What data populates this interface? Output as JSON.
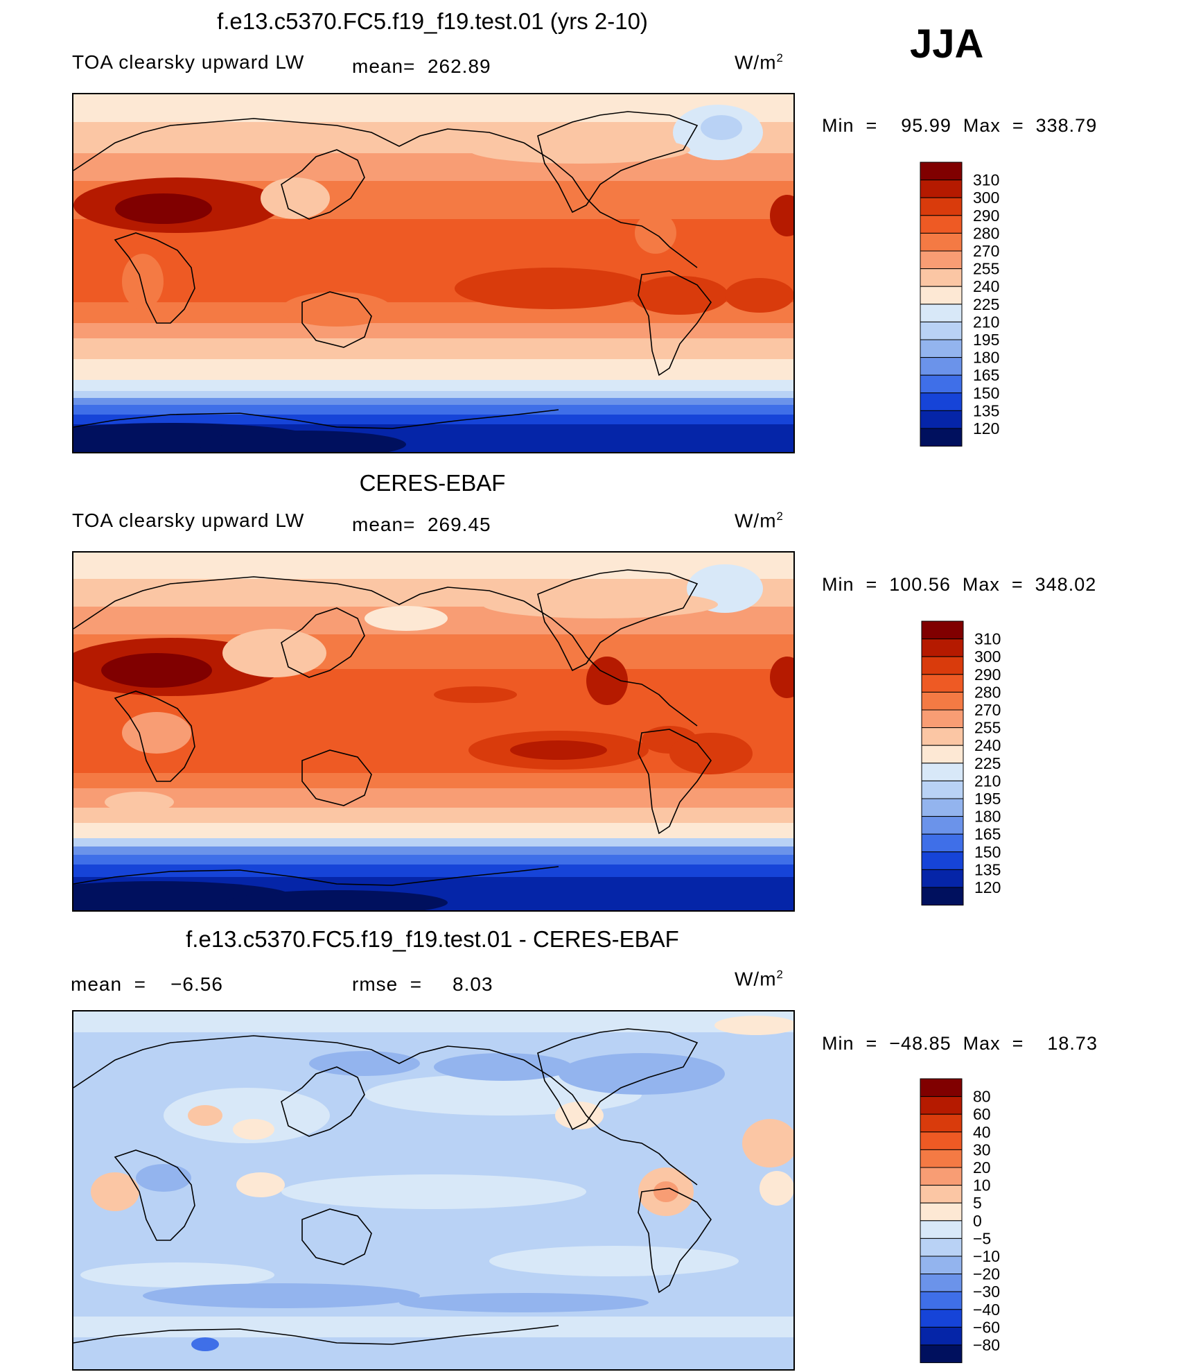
{
  "season": "JJA",
  "panels": [
    {
      "title": "f.e13.c5370.FC5.f19_f19.test.01 (yrs 2-10)",
      "left_label": "TOA clearsky upward LW",
      "mid_label": "mean=  262.89",
      "units_base": "W/m",
      "units_exp": "2",
      "minmax": "Min  =    95.99  Max  =  338.79"
    },
    {
      "title": "CERES-EBAF",
      "left_label": "TOA clearsky upward LW",
      "mid_label": "mean=  269.45",
      "units_base": "W/m",
      "units_exp": "2",
      "minmax": "Min  =  100.56  Max  =  348.02"
    },
    {
      "title": "f.e13.c5370.FC5.f19_f19.test.01 - CERES-EBAF",
      "left_label": "mean  =    −6.56",
      "mid_label": "rmse  =     8.03",
      "units_base": "W/m",
      "units_exp": "2",
      "minmax": "Min  =  −48.85  Max  =    18.73"
    }
  ],
  "chart_data": [
    {
      "type": "heatmap",
      "title": "f.e13.c5370.FC5.f19_f19.test.01 (yrs 2-10)",
      "variable": "TOA clearsky upward LW",
      "units": "W/m2",
      "mean": 262.89,
      "min": 95.99,
      "max": 338.79,
      "colorbar_levels": [
        310,
        300,
        290,
        280,
        270,
        255,
        240,
        225,
        210,
        195,
        180,
        165,
        150,
        135,
        120
      ],
      "colorbar_colors": [
        "#800000",
        "#b51a00",
        "#d93b0c",
        "#ee5a24",
        "#f47a44",
        "#f89d74",
        "#fbc6a4",
        "#fde8d4",
        "#d8e8f8",
        "#b9d2f5",
        "#93b4ee",
        "#6b93ea",
        "#3f6fe8",
        "#1644d8",
        "#0525a8",
        "#00105e"
      ]
    },
    {
      "type": "heatmap",
      "title": "CERES-EBAF",
      "variable": "TOA clearsky upward LW",
      "units": "W/m2",
      "mean": 269.45,
      "min": 100.56,
      "max": 348.02,
      "colorbar_levels": [
        310,
        300,
        290,
        280,
        270,
        255,
        240,
        225,
        210,
        195,
        180,
        165,
        150,
        135,
        120
      ],
      "colorbar_colors": [
        "#800000",
        "#b51a00",
        "#d93b0c",
        "#ee5a24",
        "#f47a44",
        "#f89d74",
        "#fbc6a4",
        "#fde8d4",
        "#d8e8f8",
        "#b9d2f5",
        "#93b4ee",
        "#6b93ea",
        "#3f6fe8",
        "#1644d8",
        "#0525a8",
        "#00105e"
      ]
    },
    {
      "type": "heatmap",
      "title": "f.e13.c5370.FC5.f19_f19.test.01 - CERES-EBAF",
      "units": "W/m2",
      "mean": -6.56,
      "rmse": 8.03,
      "min": -48.85,
      "max": 18.73,
      "colorbar_levels": [
        80,
        60,
        40,
        30,
        20,
        10,
        5,
        0,
        -5,
        -10,
        -20,
        -30,
        -40,
        -60,
        -80
      ],
      "colorbar_colors": [
        "#800000",
        "#b51a00",
        "#d93b0c",
        "#ee5a24",
        "#f47a44",
        "#f89d74",
        "#fbc6a4",
        "#fde8d4",
        "#d8e8f8",
        "#b9d2f5",
        "#93b4ee",
        "#6b93ea",
        "#3f6fe8",
        "#1644d8",
        "#0525a8",
        "#00105e"
      ]
    }
  ]
}
